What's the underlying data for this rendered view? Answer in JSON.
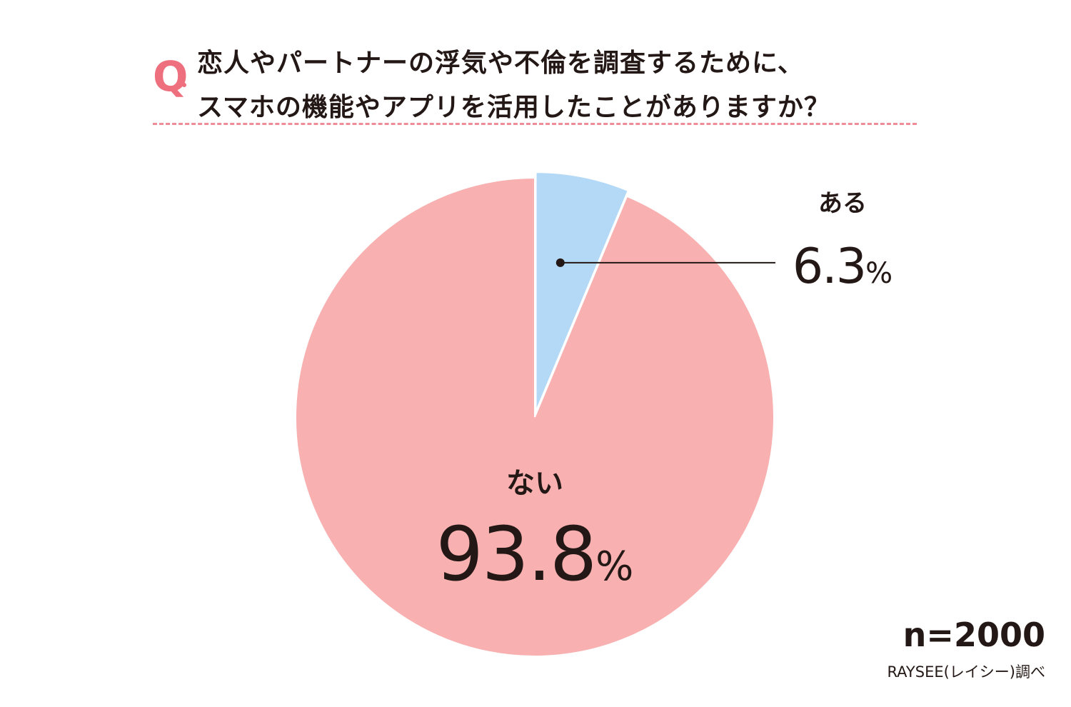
{
  "question": {
    "mark": "Q",
    "line1": "恋人やパートナーの浮気や不倫を調査するために、",
    "line2": "スマホの機能やアプリを活用したことがありますか？"
  },
  "chart_data": {
    "type": "pie",
    "categories": [
      "ある",
      "ない"
    ],
    "values": [
      6.3,
      93.8
    ],
    "value_suffix": "%",
    "colors": [
      "#b3d9f7",
      "#f8b0b0"
    ]
  },
  "footer": {
    "sample_size": "n=2000",
    "source": "RAYSEE(レイシー)調べ"
  },
  "colors": {
    "accent": "#ee6f7e",
    "text": "#231815",
    "leader": "#231815"
  }
}
